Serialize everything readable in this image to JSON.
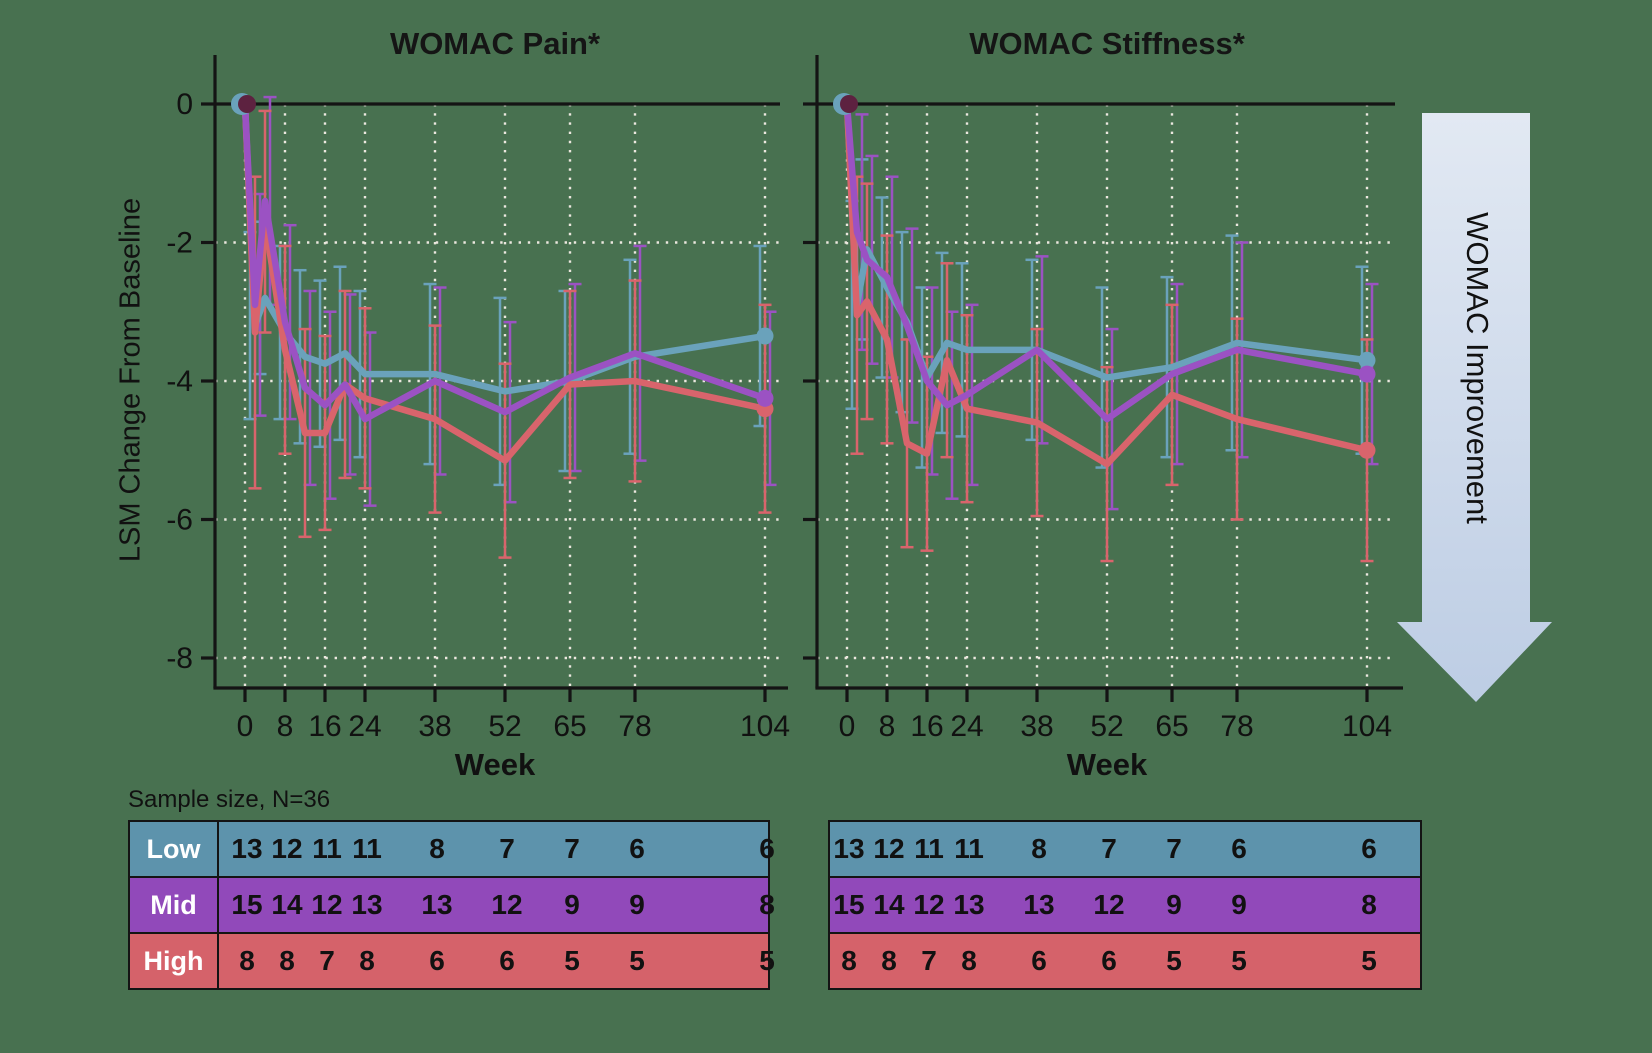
{
  "background": "#487150",
  "sample_note": "Sample size, N=36",
  "arrow": {
    "label": "WOMAC Improvement",
    "color_top": "#e2e9f3",
    "color_bottom": "#bdcde4",
    "text_color": "#111111"
  },
  "week_columns": [
    0,
    8,
    16,
    24,
    38,
    52,
    65,
    78,
    104
  ],
  "chart_data": [
    {
      "type": "line",
      "title": "WOMAC Pain*",
      "xlabel": "Week",
      "ylabel": "LSM Change From Baseline",
      "x": [
        0,
        2,
        4,
        8,
        12,
        16,
        20,
        24,
        38,
        52,
        65,
        78,
        104
      ],
      "xticks": [
        0,
        8,
        16,
        24,
        38,
        52,
        65,
        78,
        104
      ],
      "yticks": [
        0,
        -2,
        -4,
        -6,
        -8
      ],
      "ylim": [
        -8.8,
        0.8
      ],
      "grid": true,
      "legend_position": "none",
      "series": [
        {
          "name": "Low",
          "color": "#6aa2bb",
          "values": [
            0,
            -3.2,
            -2.8,
            -3.3,
            -3.65,
            -3.75,
            -3.6,
            -3.9,
            -3.9,
            -4.15,
            -4.0,
            -3.65,
            -3.35
          ],
          "err": [
            0,
            1.35,
            1.1,
            1.25,
            1.25,
            1.2,
            1.25,
            1.2,
            1.3,
            1.35,
            1.3,
            1.4,
            1.3
          ]
        },
        {
          "name": "Mid",
          "color": "#9b52c3",
          "values": [
            0,
            -2.9,
            -1.4,
            -3.15,
            -4.1,
            -4.35,
            -4.05,
            -4.55,
            -4.0,
            -4.45,
            -3.95,
            -3.6,
            -4.25
          ],
          "err": [
            0,
            1.6,
            1.5,
            1.4,
            1.4,
            1.35,
            1.3,
            1.25,
            1.35,
            1.3,
            1.35,
            1.55,
            1.25
          ]
        },
        {
          "name": "High",
          "color": "#d9646c",
          "values": [
            0,
            -3.3,
            -1.7,
            -3.55,
            -4.75,
            -4.75,
            -4.05,
            -4.25,
            -4.55,
            -5.15,
            -4.05,
            -4.0,
            -4.4
          ],
          "err": [
            0,
            2.25,
            1.6,
            1.5,
            1.5,
            1.4,
            1.35,
            1.3,
            1.35,
            1.4,
            1.35,
            1.45,
            1.5
          ]
        }
      ]
    },
    {
      "type": "line",
      "title": "WOMAC Stiffness*",
      "xlabel": "Week",
      "ylabel": "LSM Change From Baseline",
      "x": [
        0,
        2,
        4,
        8,
        12,
        16,
        20,
        24,
        38,
        52,
        65,
        78,
        104
      ],
      "xticks": [
        0,
        8,
        16,
        24,
        38,
        52,
        65,
        78,
        104
      ],
      "yticks": [
        0,
        -2,
        -4,
        -6,
        -8
      ],
      "ylim": [
        -8.8,
        0.8
      ],
      "grid": true,
      "legend_position": "none",
      "series": [
        {
          "name": "Low",
          "color": "#6aa2bb",
          "values": [
            0,
            -2.9,
            -2.1,
            -2.65,
            -3.15,
            -3.95,
            -3.45,
            -3.55,
            -3.55,
            -3.95,
            -3.8,
            -3.45,
            -3.7
          ],
          "err": [
            0,
            1.5,
            1.3,
            1.3,
            1.3,
            1.3,
            1.3,
            1.25,
            1.3,
            1.3,
            1.3,
            1.55,
            1.35
          ]
        },
        {
          "name": "Mid",
          "color": "#9b52c3",
          "values": [
            0,
            -1.85,
            -2.25,
            -2.5,
            -3.2,
            -4.0,
            -4.35,
            -4.2,
            -3.55,
            -4.55,
            -3.9,
            -3.55,
            -3.9
          ],
          "err": [
            0,
            1.7,
            1.5,
            1.45,
            1.4,
            1.35,
            1.35,
            1.3,
            1.35,
            1.3,
            1.3,
            1.55,
            1.3
          ]
        },
        {
          "name": "High",
          "color": "#d9646c",
          "values": [
            0,
            -3.05,
            -2.85,
            -3.4,
            -4.9,
            -5.05,
            -3.7,
            -4.4,
            -4.6,
            -5.2,
            -4.2,
            -4.55,
            -5.0
          ],
          "err": [
            0,
            2.0,
            1.7,
            1.5,
            1.5,
            1.4,
            1.4,
            1.35,
            1.35,
            1.4,
            1.3,
            1.45,
            1.6
          ]
        }
      ]
    }
  ],
  "tables": [
    {
      "rows": [
        {
          "label": "Low",
          "color": "#5d93ac",
          "values": [
            13,
            12,
            11,
            11,
            8,
            7,
            7,
            6,
            6
          ]
        },
        {
          "label": "Mid",
          "color": "#9149ba",
          "values": [
            15,
            14,
            12,
            13,
            13,
            12,
            9,
            9,
            8
          ]
        },
        {
          "label": "High",
          "color": "#d5626a",
          "values": [
            8,
            8,
            7,
            8,
            6,
            6,
            5,
            5,
            5
          ]
        }
      ]
    },
    {
      "rows": [
        {
          "label": "",
          "color": "#5d93ac",
          "values": [
            13,
            12,
            11,
            11,
            8,
            7,
            7,
            6,
            6
          ]
        },
        {
          "label": "",
          "color": "#9149ba",
          "values": [
            15,
            14,
            12,
            13,
            13,
            12,
            9,
            9,
            8
          ]
        },
        {
          "label": "",
          "color": "#d5626a",
          "values": [
            8,
            8,
            7,
            8,
            6,
            6,
            5,
            5,
            5
          ]
        }
      ]
    }
  ]
}
